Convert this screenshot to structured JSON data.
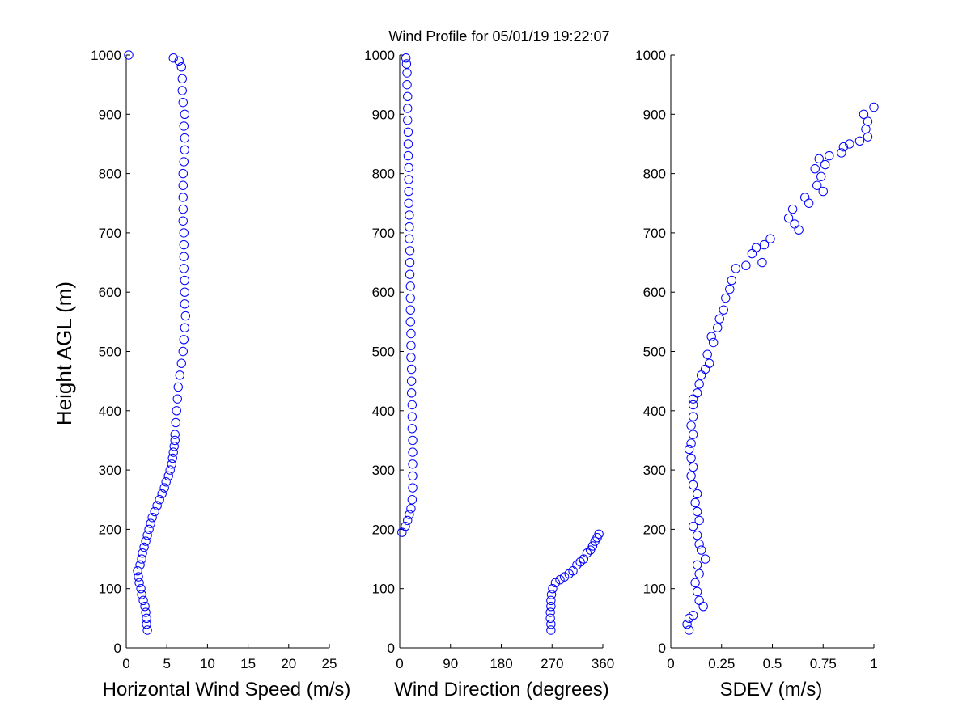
{
  "title": "Wind Profile for  05/01/19 19:22:07",
  "marker_color": "#0000ff",
  "chart_data": [
    {
      "type": "scatter",
      "xlabel": "Horizontal Wind Speed (m/s)",
      "ylabel": "Height AGL (m)",
      "xlim": [
        0,
        25
      ],
      "ylim": [
        0,
        1000
      ],
      "xticks": [
        "0",
        "5",
        "10",
        "15",
        "20",
        "25"
      ],
      "yticks": [
        "0",
        "100",
        "200",
        "300",
        "400",
        "500",
        "600",
        "700",
        "800",
        "900",
        "1000"
      ],
      "grid": false,
      "points": [
        {
          "x": 2.6,
          "y": 30
        },
        {
          "x": 2.5,
          "y": 40
        },
        {
          "x": 2.5,
          "y": 50
        },
        {
          "x": 2.4,
          "y": 60
        },
        {
          "x": 2.3,
          "y": 70
        },
        {
          "x": 2.1,
          "y": 80
        },
        {
          "x": 1.9,
          "y": 90
        },
        {
          "x": 1.8,
          "y": 100
        },
        {
          "x": 1.6,
          "y": 110
        },
        {
          "x": 1.5,
          "y": 120
        },
        {
          "x": 1.4,
          "y": 130
        },
        {
          "x": 1.7,
          "y": 140
        },
        {
          "x": 1.9,
          "y": 150
        },
        {
          "x": 2.0,
          "y": 160
        },
        {
          "x": 2.2,
          "y": 170
        },
        {
          "x": 2.4,
          "y": 180
        },
        {
          "x": 2.6,
          "y": 190
        },
        {
          "x": 2.8,
          "y": 200
        },
        {
          "x": 3.0,
          "y": 210
        },
        {
          "x": 3.2,
          "y": 220
        },
        {
          "x": 3.5,
          "y": 230
        },
        {
          "x": 3.8,
          "y": 240
        },
        {
          "x": 4.1,
          "y": 250
        },
        {
          "x": 4.4,
          "y": 260
        },
        {
          "x": 4.7,
          "y": 270
        },
        {
          "x": 4.9,
          "y": 280
        },
        {
          "x": 5.2,
          "y": 290
        },
        {
          "x": 5.4,
          "y": 300
        },
        {
          "x": 5.6,
          "y": 310
        },
        {
          "x": 5.7,
          "y": 320
        },
        {
          "x": 5.8,
          "y": 330
        },
        {
          "x": 5.9,
          "y": 340
        },
        {
          "x": 6.0,
          "y": 350
        },
        {
          "x": 6.0,
          "y": 360
        },
        {
          "x": 6.1,
          "y": 380
        },
        {
          "x": 6.2,
          "y": 400
        },
        {
          "x": 6.3,
          "y": 420
        },
        {
          "x": 6.4,
          "y": 440
        },
        {
          "x": 6.6,
          "y": 460
        },
        {
          "x": 6.8,
          "y": 480
        },
        {
          "x": 7.0,
          "y": 500
        },
        {
          "x": 7.1,
          "y": 520
        },
        {
          "x": 7.2,
          "y": 540
        },
        {
          "x": 7.3,
          "y": 560
        },
        {
          "x": 7.2,
          "y": 580
        },
        {
          "x": 7.2,
          "y": 600
        },
        {
          "x": 7.2,
          "y": 620
        },
        {
          "x": 7.1,
          "y": 640
        },
        {
          "x": 7.1,
          "y": 660
        },
        {
          "x": 7.1,
          "y": 680
        },
        {
          "x": 7.1,
          "y": 700
        },
        {
          "x": 7.0,
          "y": 720
        },
        {
          "x": 7.0,
          "y": 740
        },
        {
          "x": 7.0,
          "y": 760
        },
        {
          "x": 7.0,
          "y": 780
        },
        {
          "x": 7.0,
          "y": 800
        },
        {
          "x": 7.1,
          "y": 820
        },
        {
          "x": 7.2,
          "y": 840
        },
        {
          "x": 7.2,
          "y": 860
        },
        {
          "x": 7.1,
          "y": 880
        },
        {
          "x": 7.2,
          "y": 900
        },
        {
          "x": 7.0,
          "y": 920
        },
        {
          "x": 6.9,
          "y": 940
        },
        {
          "x": 6.9,
          "y": 960
        },
        {
          "x": 6.8,
          "y": 980
        },
        {
          "x": 6.5,
          "y": 990
        },
        {
          "x": 5.8,
          "y": 995
        },
        {
          "x": 0.3,
          "y": 1000
        }
      ]
    },
    {
      "type": "scatter",
      "xlabel": "Wind Direction (degrees)",
      "ylabel": "",
      "xlim": [
        0,
        360
      ],
      "ylim": [
        0,
        1000
      ],
      "xticks": [
        "0",
        "90",
        "180",
        "270",
        "360"
      ],
      "yticks": [
        "0",
        "100",
        "200",
        "300",
        "400",
        "500",
        "600",
        "700",
        "800",
        "900",
        "1000"
      ],
      "grid": false,
      "points": [
        {
          "x": 268,
          "y": 30
        },
        {
          "x": 268,
          "y": 40
        },
        {
          "x": 267,
          "y": 50
        },
        {
          "x": 267,
          "y": 60
        },
        {
          "x": 268,
          "y": 70
        },
        {
          "x": 268,
          "y": 80
        },
        {
          "x": 269,
          "y": 90
        },
        {
          "x": 271,
          "y": 100
        },
        {
          "x": 276,
          "y": 110
        },
        {
          "x": 284,
          "y": 115
        },
        {
          "x": 292,
          "y": 120
        },
        {
          "x": 300,
          "y": 125
        },
        {
          "x": 307,
          "y": 130
        },
        {
          "x": 314,
          "y": 140
        },
        {
          "x": 320,
          "y": 145
        },
        {
          "x": 326,
          "y": 150
        },
        {
          "x": 332,
          "y": 160
        },
        {
          "x": 338,
          "y": 165
        },
        {
          "x": 342,
          "y": 172
        },
        {
          "x": 346,
          "y": 180
        },
        {
          "x": 350,
          "y": 186
        },
        {
          "x": 353,
          "y": 192
        },
        {
          "x": 4,
          "y": 195
        },
        {
          "x": 10,
          "y": 205
        },
        {
          "x": 14,
          "y": 215
        },
        {
          "x": 17,
          "y": 225
        },
        {
          "x": 20,
          "y": 235
        },
        {
          "x": 22,
          "y": 250
        },
        {
          "x": 23,
          "y": 270
        },
        {
          "x": 23,
          "y": 290
        },
        {
          "x": 23,
          "y": 310
        },
        {
          "x": 23,
          "y": 330
        },
        {
          "x": 23,
          "y": 350
        },
        {
          "x": 22,
          "y": 370
        },
        {
          "x": 22,
          "y": 390
        },
        {
          "x": 22,
          "y": 410
        },
        {
          "x": 21,
          "y": 430
        },
        {
          "x": 21,
          "y": 450
        },
        {
          "x": 21,
          "y": 470
        },
        {
          "x": 20,
          "y": 490
        },
        {
          "x": 20,
          "y": 510
        },
        {
          "x": 20,
          "y": 530
        },
        {
          "x": 19,
          "y": 550
        },
        {
          "x": 19,
          "y": 570
        },
        {
          "x": 19,
          "y": 590
        },
        {
          "x": 19,
          "y": 610
        },
        {
          "x": 18,
          "y": 630
        },
        {
          "x": 18,
          "y": 650
        },
        {
          "x": 18,
          "y": 670
        },
        {
          "x": 17,
          "y": 690
        },
        {
          "x": 17,
          "y": 710
        },
        {
          "x": 17,
          "y": 730
        },
        {
          "x": 16,
          "y": 750
        },
        {
          "x": 16,
          "y": 770
        },
        {
          "x": 16,
          "y": 790
        },
        {
          "x": 16,
          "y": 810
        },
        {
          "x": 15,
          "y": 830
        },
        {
          "x": 15,
          "y": 850
        },
        {
          "x": 15,
          "y": 870
        },
        {
          "x": 14,
          "y": 890
        },
        {
          "x": 14,
          "y": 910
        },
        {
          "x": 14,
          "y": 930
        },
        {
          "x": 13,
          "y": 950
        },
        {
          "x": 13,
          "y": 970
        },
        {
          "x": 12,
          "y": 985
        },
        {
          "x": 11,
          "y": 995
        }
      ]
    },
    {
      "type": "scatter",
      "xlabel": "SDEV  (m/s)",
      "ylabel": "",
      "xlim": [
        0,
        1
      ],
      "ylim": [
        0,
        1000
      ],
      "xticks": [
        "0",
        "0.25",
        "0.5",
        "0.75",
        "1"
      ],
      "yticks": [
        "0",
        "100",
        "200",
        "300",
        "400",
        "500",
        "600",
        "700",
        "800",
        "900",
        "1000"
      ],
      "grid": false,
      "points": [
        {
          "x": 0.09,
          "y": 30
        },
        {
          "x": 0.08,
          "y": 40
        },
        {
          "x": 0.09,
          "y": 50
        },
        {
          "x": 0.11,
          "y": 55
        },
        {
          "x": 0.16,
          "y": 70
        },
        {
          "x": 0.14,
          "y": 80
        },
        {
          "x": 0.13,
          "y": 95
        },
        {
          "x": 0.12,
          "y": 110
        },
        {
          "x": 0.14,
          "y": 125
        },
        {
          "x": 0.13,
          "y": 140
        },
        {
          "x": 0.17,
          "y": 150
        },
        {
          "x": 0.15,
          "y": 165
        },
        {
          "x": 0.14,
          "y": 175
        },
        {
          "x": 0.13,
          "y": 190
        },
        {
          "x": 0.11,
          "y": 205
        },
        {
          "x": 0.14,
          "y": 215
        },
        {
          "x": 0.13,
          "y": 230
        },
        {
          "x": 0.12,
          "y": 245
        },
        {
          "x": 0.13,
          "y": 260
        },
        {
          "x": 0.11,
          "y": 275
        },
        {
          "x": 0.1,
          "y": 290
        },
        {
          "x": 0.11,
          "y": 305
        },
        {
          "x": 0.1,
          "y": 320
        },
        {
          "x": 0.09,
          "y": 335
        },
        {
          "x": 0.1,
          "y": 345
        },
        {
          "x": 0.11,
          "y": 360
        },
        {
          "x": 0.1,
          "y": 375
        },
        {
          "x": 0.11,
          "y": 390
        },
        {
          "x": 0.11,
          "y": 410
        },
        {
          "x": 0.11,
          "y": 420
        },
        {
          "x": 0.13,
          "y": 430
        },
        {
          "x": 0.14,
          "y": 445
        },
        {
          "x": 0.15,
          "y": 460
        },
        {
          "x": 0.17,
          "y": 470
        },
        {
          "x": 0.19,
          "y": 480
        },
        {
          "x": 0.18,
          "y": 495
        },
        {
          "x": 0.21,
          "y": 515
        },
        {
          "x": 0.2,
          "y": 525
        },
        {
          "x": 0.23,
          "y": 540
        },
        {
          "x": 0.24,
          "y": 555
        },
        {
          "x": 0.26,
          "y": 570
        },
        {
          "x": 0.27,
          "y": 590
        },
        {
          "x": 0.29,
          "y": 605
        },
        {
          "x": 0.3,
          "y": 620
        },
        {
          "x": 0.32,
          "y": 640
        },
        {
          "x": 0.37,
          "y": 645
        },
        {
          "x": 0.45,
          "y": 650
        },
        {
          "x": 0.4,
          "y": 665
        },
        {
          "x": 0.42,
          "y": 675
        },
        {
          "x": 0.46,
          "y": 680
        },
        {
          "x": 0.49,
          "y": 690
        },
        {
          "x": 0.63,
          "y": 705
        },
        {
          "x": 0.61,
          "y": 715
        },
        {
          "x": 0.58,
          "y": 725
        },
        {
          "x": 0.6,
          "y": 740
        },
        {
          "x": 0.68,
          "y": 750
        },
        {
          "x": 0.66,
          "y": 760
        },
        {
          "x": 0.75,
          "y": 770
        },
        {
          "x": 0.72,
          "y": 780
        },
        {
          "x": 0.74,
          "y": 795
        },
        {
          "x": 0.71,
          "y": 808
        },
        {
          "x": 0.76,
          "y": 815
        },
        {
          "x": 0.73,
          "y": 825
        },
        {
          "x": 0.78,
          "y": 830
        },
        {
          "x": 0.84,
          "y": 835
        },
        {
          "x": 0.85,
          "y": 845
        },
        {
          "x": 0.88,
          "y": 850
        },
        {
          "x": 0.93,
          "y": 855
        },
        {
          "x": 0.97,
          "y": 862
        },
        {
          "x": 0.96,
          "y": 875
        },
        {
          "x": 0.97,
          "y": 888
        },
        {
          "x": 0.95,
          "y": 900
        },
        {
          "x": 1.0,
          "y": 912
        }
      ]
    }
  ]
}
